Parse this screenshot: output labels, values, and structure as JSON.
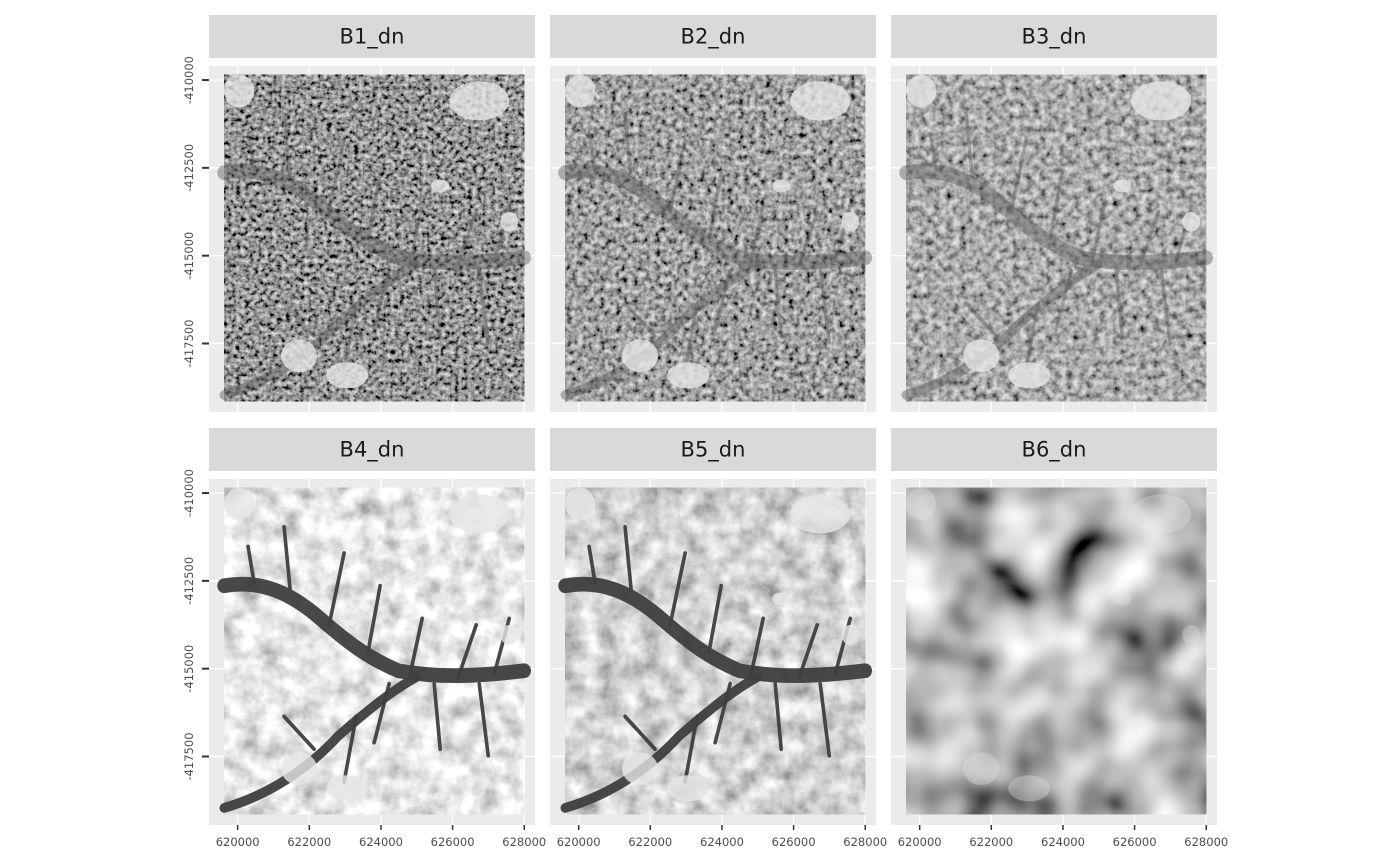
{
  "chart_data": {
    "type": "heatmap",
    "panels": [
      {
        "label": "B1_dn",
        "band": 1
      },
      {
        "label": "B2_dn",
        "band": 2
      },
      {
        "label": "B3_dn",
        "band": 3
      },
      {
        "label": "B4_dn",
        "band": 4
      },
      {
        "label": "B5_dn",
        "band": 5
      },
      {
        "label": "B6_dn",
        "band": 6
      }
    ],
    "x_ticks": [
      620000,
      622000,
      624000,
      626000,
      628000
    ],
    "x_tick_labels": [
      "620000",
      "622000",
      "624000",
      "626000",
      "628000"
    ],
    "y_ticks": [
      -410000,
      -412500,
      -415000,
      -417500
    ],
    "y_tick_labels": [
      "-410000",
      "-412500",
      "-415000",
      "-417500"
    ],
    "xlim": [
      619200,
      628300
    ],
    "ylim": [
      -419450,
      -409600
    ],
    "raster_extent": {
      "x": [
        619620,
        628000
      ],
      "y": [
        -419150,
        -409850
      ]
    },
    "grid": true,
    "colormap": "grayscale",
    "xlabel": "",
    "ylabel": "",
    "title": "",
    "colors": {
      "panel_background": "#ebebeb",
      "grid_major": "#ffffff",
      "strip_background": "#d9d9d9",
      "tick_text": "#4d4d4d"
    }
  }
}
